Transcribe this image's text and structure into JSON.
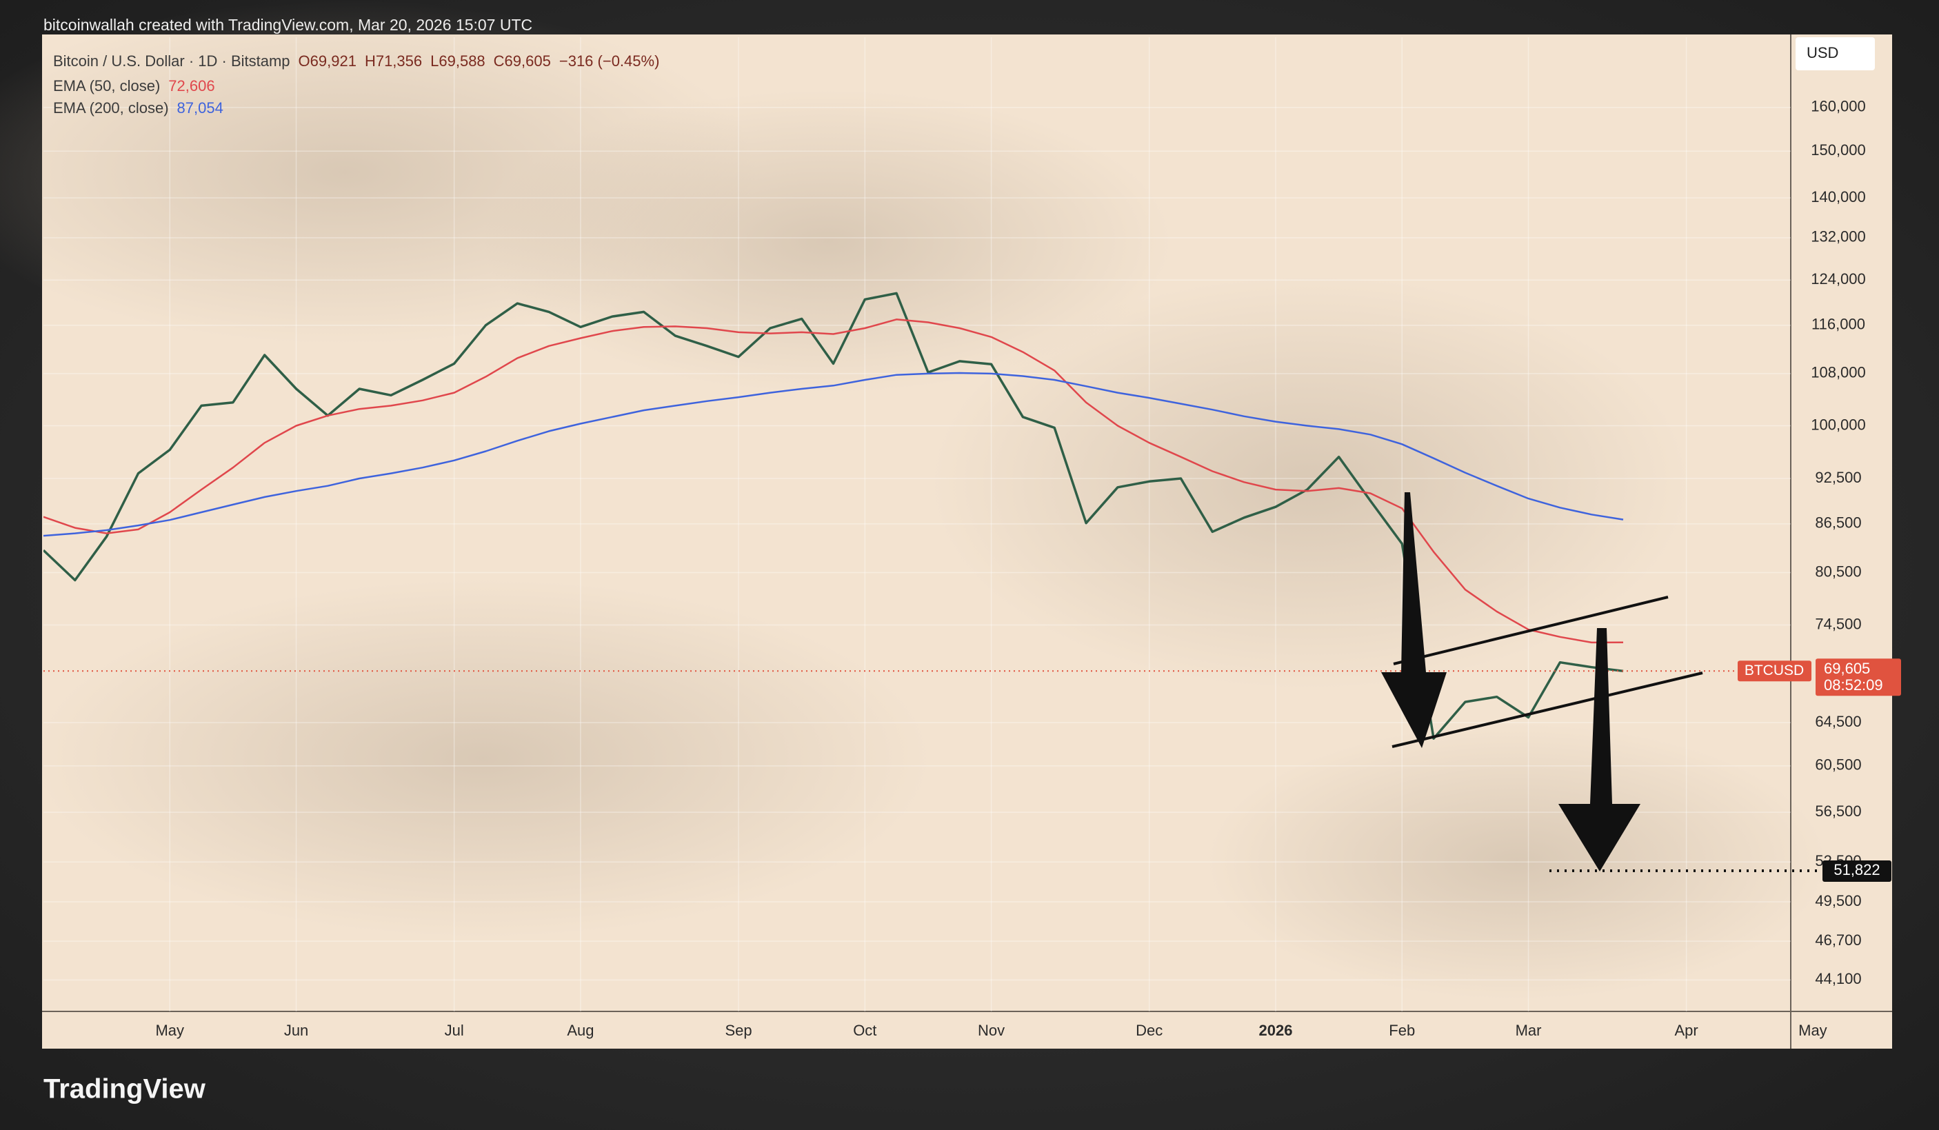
{
  "chart_data": {
    "type": "line",
    "caption": "bitcoinwallah created with TradingView.com, Mar 20, 2026 15:07 UTC",
    "brand": "TradingView",
    "currency": "USD",
    "header": {
      "symbol": "Bitcoin / U.S. Dollar · 1D · Bitstamp",
      "open": "O69,921",
      "high": "H71,356",
      "low": "L69,588",
      "close": "C69,605",
      "change": "−316 (−0.45%)"
    },
    "log_scale": true,
    "grid": true,
    "categories": [
      null,
      null,
      null,
      null,
      "May",
      null,
      null,
      null,
      "Jun",
      null,
      null,
      null,
      null,
      "Jul",
      null,
      null,
      null,
      "Aug",
      null,
      null,
      null,
      null,
      "Sep",
      null,
      null,
      null,
      "Oct",
      null,
      null,
      null,
      "Nov",
      null,
      null,
      null,
      null,
      "Dec",
      null,
      null,
      null,
      "2026",
      null,
      null,
      null,
      "Feb",
      null,
      null,
      null,
      "Mar",
      null,
      null,
      null,
      null,
      "Apr",
      null,
      null,
      null,
      "May"
    ],
    "series": [
      {
        "name": "BTCUSD",
        "color": "#2f5f47",
        "values": [
          83200,
          79600,
          84900,
          93200,
          96500,
          103000,
          103500,
          111000,
          105600,
          101500,
          105600,
          104600,
          107000,
          109600,
          116000,
          119800,
          118300,
          115700,
          117500,
          118300,
          114200,
          112500,
          110700,
          115500,
          117100,
          109600,
          120500,
          121600,
          108200,
          110000,
          109500,
          101300,
          99700,
          86600,
          91300,
          92100,
          92500,
          85500,
          87300,
          88700,
          91000,
          95500,
          89500,
          84000,
          63000,
          66500,
          67000,
          65000,
          70500,
          70000,
          69605,
          null,
          null,
          null,
          null,
          null,
          null
        ]
      },
      {
        "name": "EMA (50, close)",
        "value_label": "72,606",
        "color": "#e0474c",
        "values": [
          87400,
          86000,
          85300,
          85800,
          88000,
          91000,
          94000,
          97500,
          100000,
          101500,
          102500,
          103000,
          103800,
          105000,
          107500,
          110500,
          112500,
          113800,
          115000,
          115700,
          115800,
          115500,
          114800,
          114600,
          114800,
          114500,
          115500,
          117000,
          116500,
          115500,
          114000,
          111500,
          108500,
          103500,
          100000,
          97500,
          95500,
          93500,
          92000,
          91000,
          90800,
          91200,
          90500,
          88500,
          83000,
          78500,
          76000,
          74000,
          73200,
          72600,
          72606,
          null,
          null,
          null,
          null,
          null,
          null
        ]
      },
      {
        "name": "EMA (200, close)",
        "value_label": "87,054",
        "color": "#3e63dd",
        "values": [
          85000,
          85300,
          85700,
          86300,
          87000,
          88000,
          89000,
          90000,
          90800,
          91500,
          92500,
          93200,
          94000,
          95000,
          96300,
          97800,
          99200,
          100300,
          101300,
          102300,
          103000,
          103700,
          104300,
          105000,
          105600,
          106100,
          107000,
          107800,
          108000,
          108100,
          108000,
          107600,
          107000,
          106000,
          105000,
          104200,
          103300,
          102400,
          101400,
          100600,
          100000,
          99500,
          98700,
          97300,
          95300,
          93300,
          91500,
          89800,
          88600,
          87700,
          87054,
          null,
          null,
          null,
          null,
          null,
          null
        ]
      }
    ],
    "ylim": [
      42100,
      177500
    ],
    "yticks": [
      {
        "value": 160000,
        "label": "160,000"
      },
      {
        "value": 150000,
        "label": "150,000"
      },
      {
        "value": 140000,
        "label": "140,000"
      },
      {
        "value": 132000,
        "label": "132,000"
      },
      {
        "value": 124000,
        "label": "124,000"
      },
      {
        "value": 116000,
        "label": "116,000"
      },
      {
        "value": 108000,
        "label": "108,000"
      },
      {
        "value": 100000,
        "label": "100,000"
      },
      {
        "value": 92500,
        "label": "92,500"
      },
      {
        "value": 86500,
        "label": "86,500"
      },
      {
        "value": 80500,
        "label": "80,500"
      },
      {
        "value": 74500,
        "label": "74,500"
      },
      {
        "value": 64500,
        "label": "64,500"
      },
      {
        "value": 60500,
        "label": "60,500"
      },
      {
        "value": 56500,
        "label": "56,500"
      },
      {
        "value": 52500,
        "label": "52,500"
      },
      {
        "value": 49500,
        "label": "49,500"
      },
      {
        "value": 46700,
        "label": "46,700"
      },
      {
        "value": 44100,
        "label": "44,100"
      }
    ],
    "price_tag": {
      "name": "BTCUSD",
      "value": 69605,
      "label": "69,605",
      "countdown": "08:52:09"
    },
    "target": {
      "value": 51822,
      "label": "51,822"
    }
  }
}
